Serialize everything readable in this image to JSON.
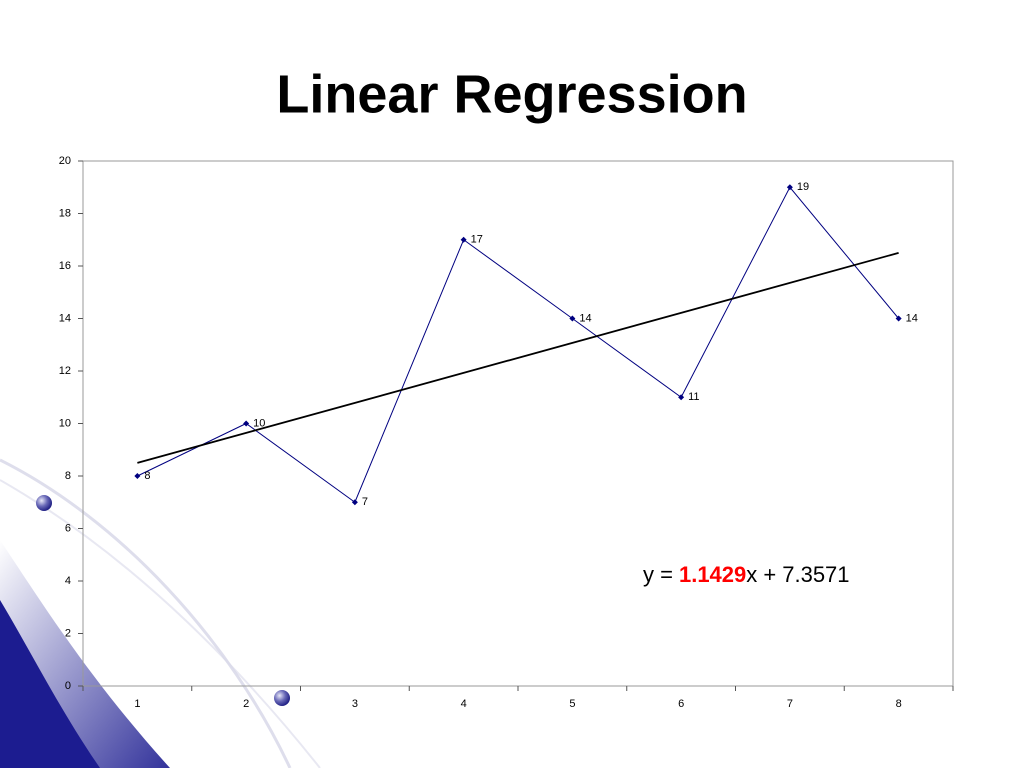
{
  "chart_data": {
    "type": "line",
    "title": "Linear Regression",
    "categories": [
      1,
      2,
      3,
      4,
      5,
      6,
      7,
      8
    ],
    "series": [
      {
        "color": "#000080",
        "values": [
          8,
          10,
          7,
          17,
          14,
          11,
          19,
          14
        ]
      }
    ],
    "ylim": [
      0,
      20
    ],
    "yticks": [
      0,
      2,
      4,
      6,
      8,
      10,
      12,
      14,
      16,
      18,
      20
    ],
    "trendline": {
      "color": "#000000",
      "slope": 1.1429,
      "intercept": 7.3571,
      "slope_color": "#ff0000",
      "equation_parts": [
        "y =",
        "x +"
      ]
    }
  }
}
